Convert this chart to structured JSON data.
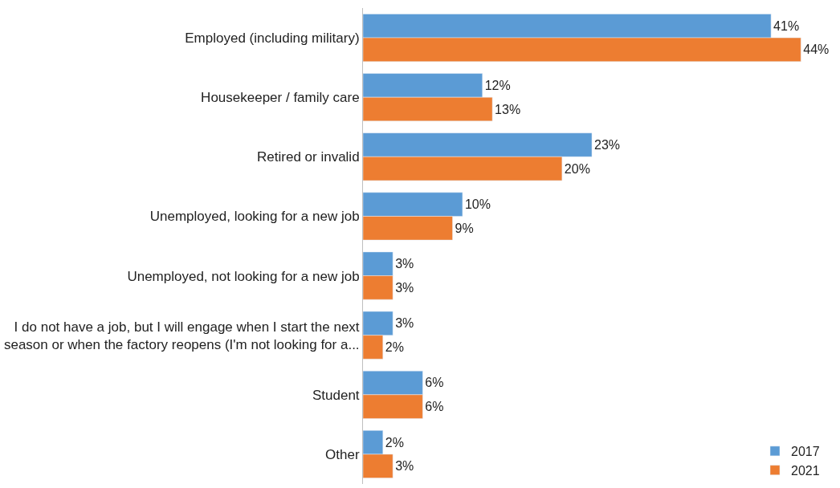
{
  "chart_data": {
    "type": "bar",
    "orientation": "horizontal",
    "categories": [
      "Employed (including military)",
      "Housekeeper / family care",
      "Retired or invalid",
      "Unemployed, looking for a new job",
      "Unemployed, not looking for a new job",
      "I do not have a job, but I will engage when I start the next season or when the factory reopens (I'm not looking for a...",
      "Student",
      "Other"
    ],
    "series": [
      {
        "name": "2017",
        "color": "#5b9bd5",
        "values": [
          41,
          12,
          23,
          10,
          3,
          3,
          6,
          2
        ],
        "value_labels": [
          "41%",
          "12%",
          "23%",
          "10%",
          "3%",
          "3%",
          "6%",
          "2%"
        ]
      },
      {
        "name": "2021",
        "color": "#ed7d31",
        "values": [
          44,
          13,
          20,
          9,
          3,
          2,
          6,
          3
        ],
        "value_labels": [
          "44%",
          "13%",
          "20%",
          "9%",
          "3%",
          "2%",
          "6%",
          "3%"
        ]
      }
    ],
    "tick_labels": "y",
    "legend": "bottom right"
  }
}
